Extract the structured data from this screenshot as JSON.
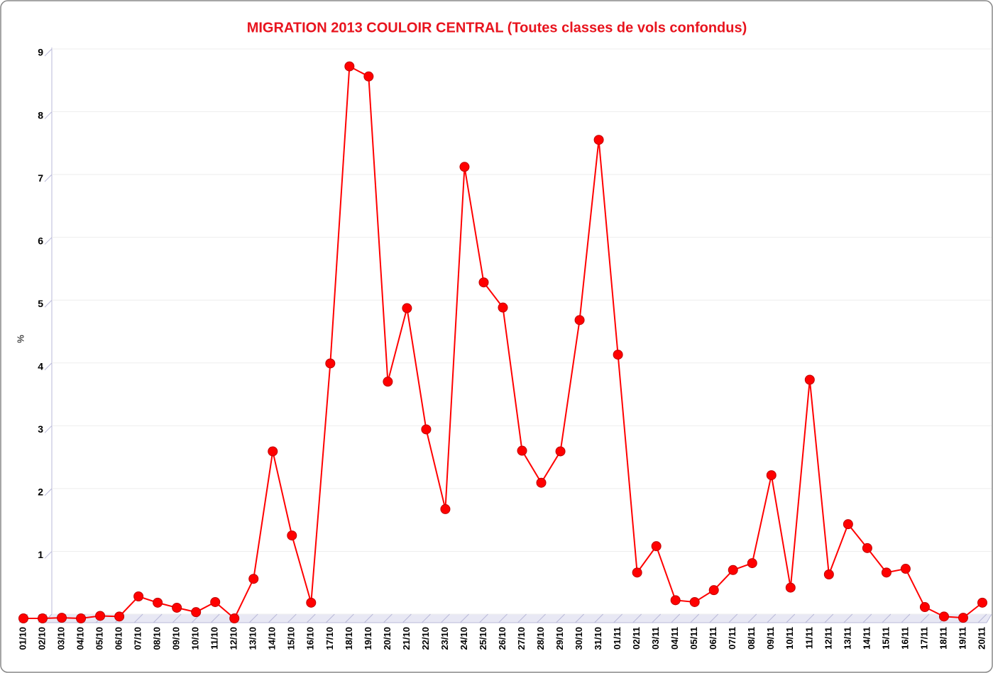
{
  "chart_data": {
    "type": "line",
    "title": "MIGRATION 2013 COULOIR CENTRAL (Toutes classes de vols confondus)",
    "y_label": "%",
    "categories": [
      "01/10",
      "02/10",
      "03/10",
      "04/10",
      "05/10",
      "06/10",
      "07/10",
      "08/10",
      "09/10",
      "10/10",
      "11/10",
      "12/10",
      "13/10",
      "14/10",
      "15/10",
      "16/10",
      "17/10",
      "18/10",
      "19/10",
      "20/10",
      "21/10",
      "22/10",
      "23/10",
      "24/10",
      "25/10",
      "26/10",
      "27/10",
      "28/10",
      "29/10",
      "30/10",
      "31/10",
      "01/11",
      "02/11",
      "03/11",
      "04/11",
      "05/11",
      "06/11",
      "07/11",
      "08/11",
      "09/11",
      "10/11",
      "11/11",
      "12/11",
      "13/11",
      "14/11",
      "15/11",
      "16/11",
      "17/11",
      "18/11",
      "19/11",
      "20/11"
    ],
    "series": [
      {
        "name": "%",
        "color": "#ff0000",
        "values": [
          0,
          0,
          0.01,
          0,
          0.04,
          0.03,
          0.35,
          0.25,
          0.17,
          0.1,
          0.26,
          0,
          0.63,
          2.66,
          1.32,
          0.25,
          4.06,
          8.79,
          8.63,
          3.77,
          4.94,
          3.01,
          1.74,
          7.19,
          5.35,
          4.95,
          2.67,
          2.16,
          2.66,
          4.75,
          7.62,
          4.2,
          0.73,
          1.15,
          0.29,
          0.26,
          0.45,
          0.77,
          0.88,
          2.28,
          0.49,
          3.8,
          0.7,
          1.5,
          1.12,
          0.73,
          0.79,
          0.18,
          0.03,
          0.01,
          0.25
        ]
      }
    ],
    "ylim": [
      0,
      9
    ],
    "yticks": [
      0,
      1,
      2,
      3,
      4,
      5,
      6,
      7,
      8,
      9
    ],
    "grid": true
  }
}
